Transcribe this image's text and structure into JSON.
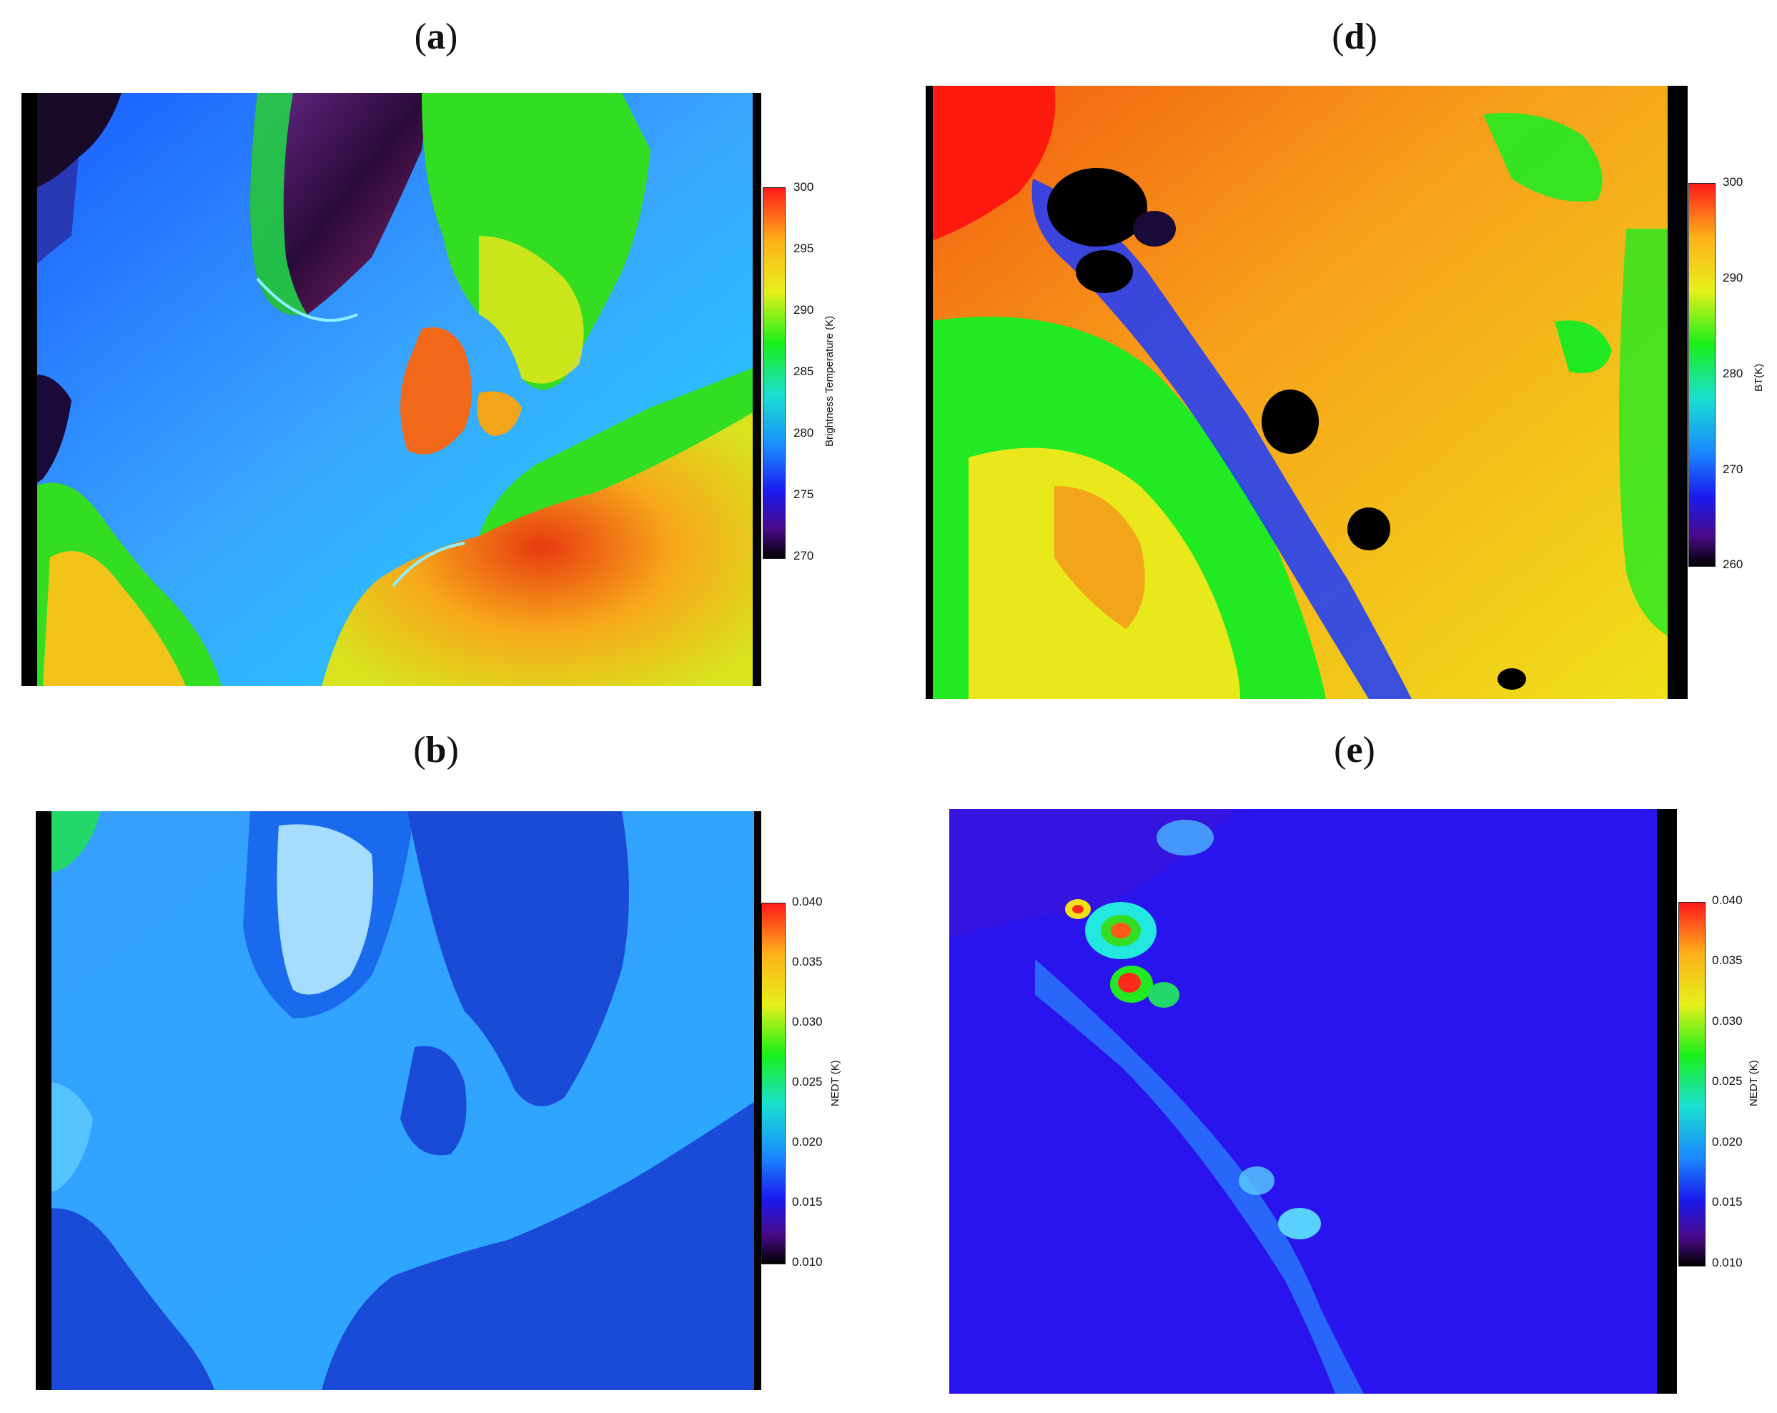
{
  "panels": [
    {
      "id": "a",
      "label": "a",
      "colorbar": {
        "title": "Brightness Temperature (K)",
        "ticks": [
          "300",
          "295",
          "290",
          "285",
          "280",
          "275",
          "270"
        ],
        "min": 270,
        "max": 300,
        "colormap": "rainbow-with-black-low"
      }
    },
    {
      "id": "d",
      "label": "d",
      "colorbar": {
        "title": "BT(K)",
        "ticks": [
          "300",
          "290",
          "280",
          "270",
          "260"
        ],
        "min": 260,
        "max": 300,
        "colormap": "rainbow-with-black-low"
      }
    },
    {
      "id": "b",
      "label": "b",
      "colorbar": {
        "title": "NEDT (K)",
        "ticks": [
          "0.040",
          "0.035",
          "0.030",
          "0.025",
          "0.020",
          "0.015",
          "0.010"
        ],
        "min": 0.01,
        "max": 0.04,
        "colormap": "rainbow-with-black-low"
      }
    },
    {
      "id": "e",
      "label": "e",
      "colorbar": {
        "title": "NEDT (K)",
        "ticks": [
          "0.040",
          "0.035",
          "0.030",
          "0.025",
          "0.020",
          "0.015",
          "0.010"
        ],
        "min": 0.01,
        "max": 0.04,
        "colormap": "rainbow-with-black-low"
      }
    }
  ],
  "colors": {
    "background": "#ffffff",
    "sea_a": "#2f9bff",
    "land_a": "#f28a10",
    "dark_band": "#000000"
  }
}
